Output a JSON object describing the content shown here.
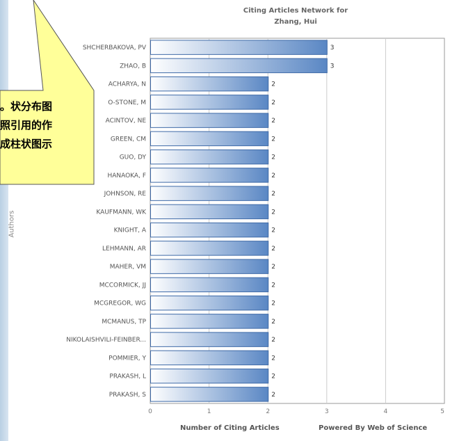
{
  "chart_data": {
    "type": "bar",
    "orientation": "horizontal",
    "title": "Citing Articles Network for Zhang, Hui",
    "title_lines": [
      "Citing Articles Network for",
      "Zhang, Hui"
    ],
    "xlabel": "Number of Citing Articles",
    "ylabel": "Authors",
    "credit": "Powered By Web of Science",
    "xlim": [
      0,
      5
    ],
    "xticks": [
      "0",
      "1",
      "2",
      "3",
      "4",
      "5"
    ],
    "grid": true,
    "categories": [
      "SHCHERBAKOVA, PV",
      "ZHAO, B",
      "ACHARYA, N",
      "O-STONE, M",
      "ACINTOV, NE",
      "GREEN, CM",
      "GUO, DY",
      "HANAOKA, F",
      "JOHNSON, RE",
      "KAUFMANN, WK",
      "KNIGHT, A",
      "LEHMANN, AR",
      "MAHER, VM",
      "MCCORMICK, JJ",
      "MCGREGOR, WG",
      "MCMANUS, TP",
      "NIKOLAISHVILI-FEINBER...",
      "POMMIER, Y",
      "PRAKASH, L",
      "PRAKASH, S"
    ],
    "values": [
      3,
      3,
      2,
      2,
      2,
      2,
      2,
      2,
      2,
      2,
      2,
      2,
      2,
      2,
      2,
      2,
      2,
      2,
      2,
      2
    ],
    "colors": {
      "bar_light": "#ffffff",
      "bar_dark": "#5a87c4",
      "bar_border": "#3f6aa7",
      "grid": "#cccccc"
    }
  },
  "callout": {
    "lines": [
      "状分布图。",
      "照引用的作",
      "成柱状图示"
    ],
    "fill": "#ffff99",
    "border": "#555555"
  }
}
